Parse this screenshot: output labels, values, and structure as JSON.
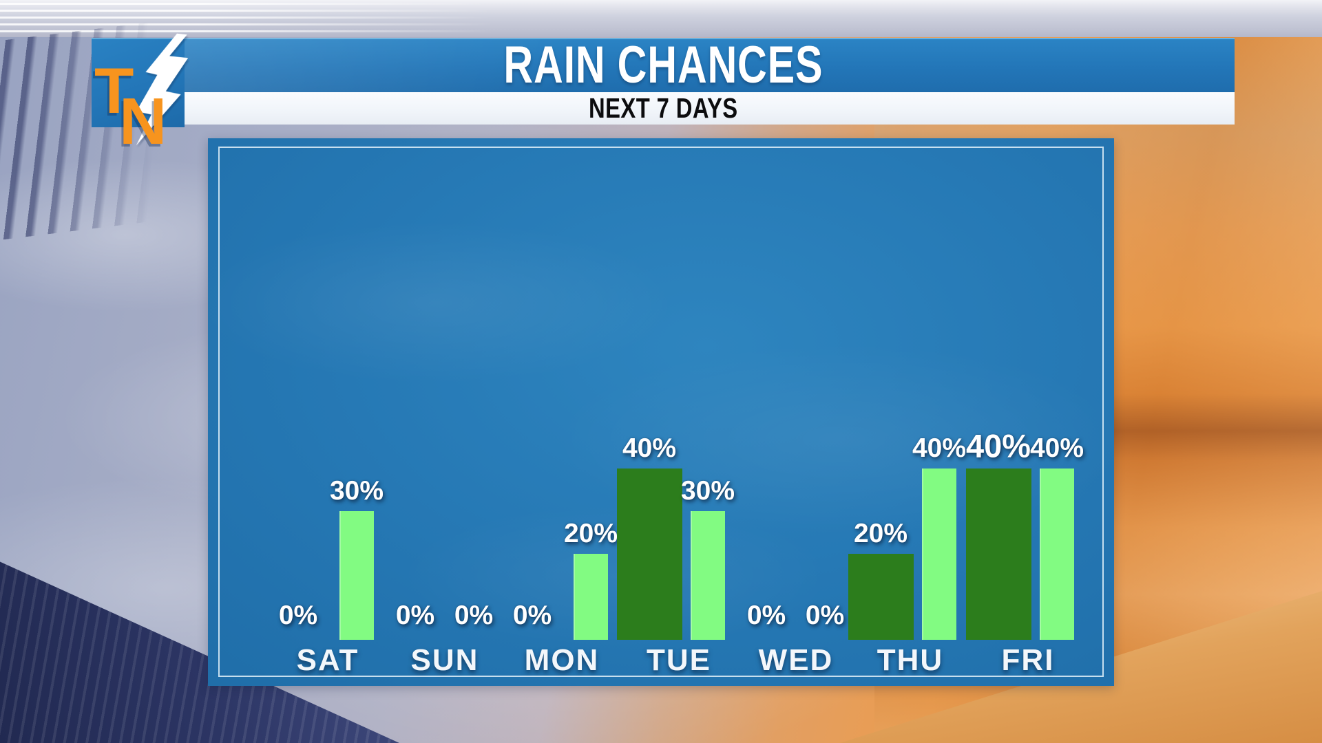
{
  "header": {
    "title": "RAIN CHANCES",
    "subtitle": "NEXT 7 DAYS",
    "logo": {
      "letter_t": "T",
      "letter_n": "N",
      "bolt_icon": "lightning-bolt"
    },
    "colors": {
      "banner_blue": "#2377b9",
      "subtitle_bg": "#f3f7fb",
      "title_color": "#ffffff",
      "subtitle_color": "#0c0c0e",
      "logo_orange": "#f7941e"
    }
  },
  "chart_panel": {
    "panel_blue": "#2679b5",
    "inner_border_color": "#e4f2fa"
  },
  "chart_data": {
    "type": "bar",
    "title": "RAIN CHANCES",
    "subtitle": "NEXT 7 DAYS",
    "categories": [
      "SAT",
      "SUN",
      "MON",
      "TUE",
      "WED",
      "THU",
      "FRI"
    ],
    "series": [
      {
        "name": "first-chance",
        "color": "#2c7d1c",
        "values": [
          0,
          0,
          0,
          40,
          0,
          20,
          40
        ]
      },
      {
        "name": "second-chance",
        "color": "#82fb82",
        "values": [
          30,
          0,
          20,
          30,
          0,
          40,
          40
        ]
      }
    ],
    "unit": "%",
    "ylim": [
      0,
      100
    ],
    "grid": false,
    "legend": "none",
    "value_label_format": "{value}%",
    "emphasized_label": {
      "category": "FRI",
      "series": "first-chance"
    }
  }
}
